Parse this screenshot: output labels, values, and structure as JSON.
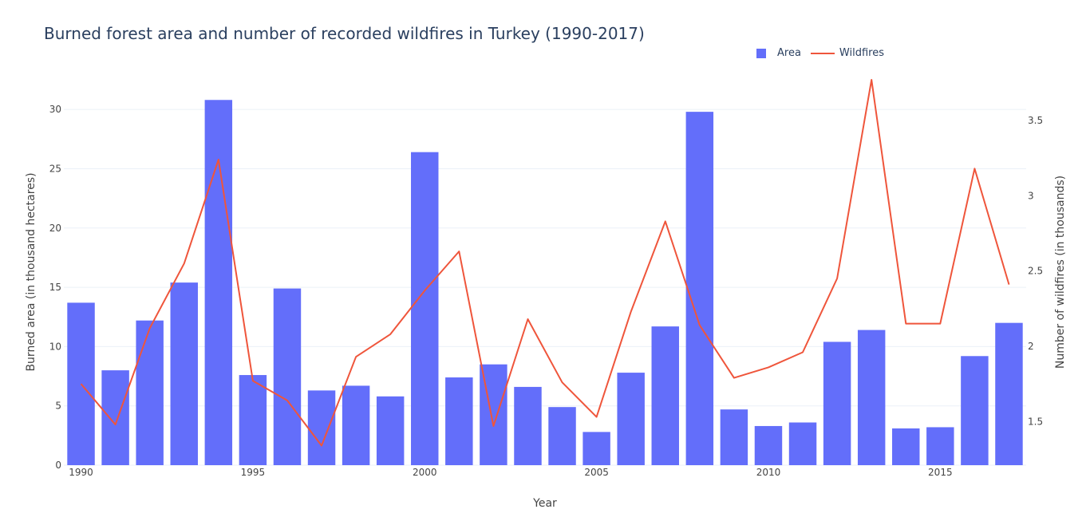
{
  "chart_data": {
    "type": "bar+line",
    "title": "Burned forest area and number of recorded wildfires in Turkey (1990-2017)",
    "xlabel": "Year",
    "ylabel_left": "Burned area (in thousand hectares)",
    "ylabel_right": "Number of wildfires (in thousands)",
    "x": [
      1990,
      1991,
      1992,
      1993,
      1994,
      1995,
      1996,
      1997,
      1998,
      1999,
      2000,
      2001,
      2002,
      2003,
      2004,
      2005,
      2006,
      2007,
      2008,
      2009,
      2010,
      2011,
      2012,
      2013,
      2014,
      2015,
      2016,
      2017
    ],
    "x_ticks": [
      "1990",
      "1995",
      "2000",
      "2005",
      "2010",
      "2015"
    ],
    "y_left_ticks": [
      "0",
      "5",
      "10",
      "15",
      "20",
      "25",
      "30"
    ],
    "y_right_ticks": [
      "1.5",
      "2",
      "2.5",
      "3",
      "3.5"
    ],
    "y_left_range": [
      0,
      32.5
    ],
    "y_right_range": [
      1.21,
      3.77
    ],
    "series": [
      {
        "name": "Area",
        "kind": "bar",
        "axis": "left",
        "color": "#636efa",
        "values": [
          13.7,
          8.0,
          12.2,
          15.4,
          30.8,
          7.6,
          14.9,
          6.3,
          6.7,
          5.8,
          26.4,
          7.4,
          8.5,
          6.6,
          4.9,
          2.8,
          7.8,
          11.7,
          29.8,
          4.7,
          3.3,
          3.6,
          10.4,
          11.4,
          3.1,
          3.2,
          9.2,
          12.0
        ]
      },
      {
        "name": "Wildfires",
        "kind": "line",
        "axis": "right",
        "color": "#ef553b",
        "values": [
          1.75,
          1.48,
          2.12,
          2.55,
          3.24,
          1.77,
          1.64,
          1.34,
          1.93,
          2.08,
          2.37,
          2.63,
          1.47,
          2.18,
          1.76,
          1.53,
          2.23,
          2.83,
          2.14,
          1.79,
          1.86,
          1.96,
          2.45,
          3.77,
          2.15,
          2.15,
          3.18,
          2.41
        ]
      }
    ],
    "legend_position": "top-right",
    "grid": true
  }
}
